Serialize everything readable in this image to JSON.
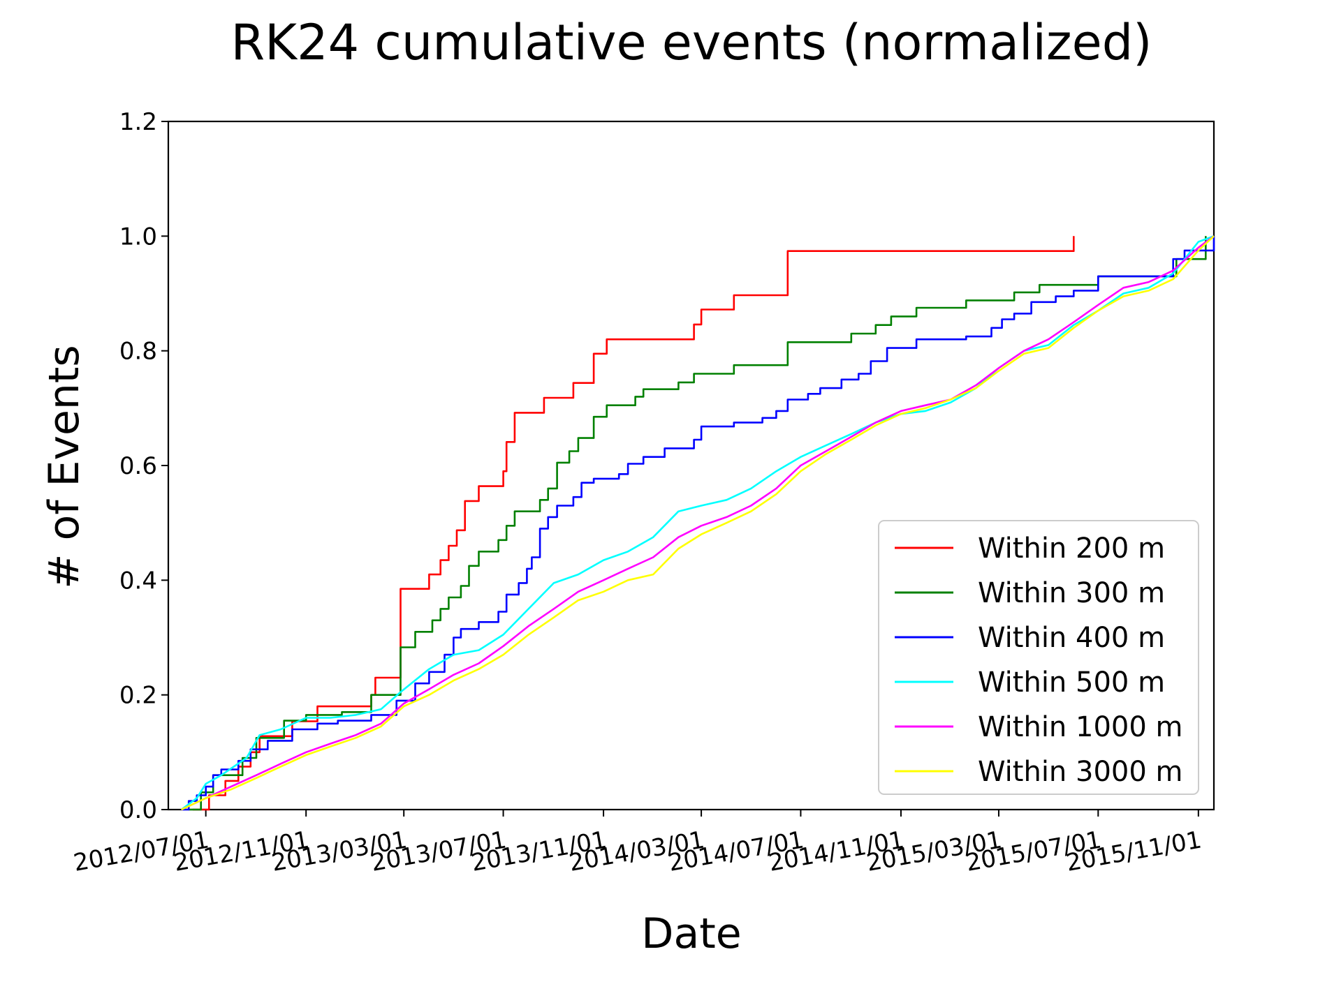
{
  "chart_data": {
    "type": "line",
    "title": "RK24 cumulative events (normalized)",
    "xlabel": "Date",
    "ylabel": "# of Events",
    "ylim": [
      0,
      1.2
    ],
    "y_ticks": [
      "0.0",
      "0.2",
      "0.4",
      "0.6",
      "0.8",
      "1.0",
      "1.2"
    ],
    "x_ticks": [
      "2012/07/01",
      "2012/11/01",
      "2013/03/01",
      "2013/07/01",
      "2013/11/01",
      "2014/03/01",
      "2014/07/01",
      "2014/11/01",
      "2015/03/01",
      "2015/07/01",
      "2015/11/01"
    ],
    "xlim": [
      "2012/05/16",
      "2015/11/20"
    ],
    "grid": false,
    "legend_position": "lower-right",
    "series": [
      {
        "name": "Within 200 m",
        "color": "#ff0000",
        "step": true,
        "points": [
          [
            "2012/06/15",
            0.0
          ],
          [
            "2012/07/01",
            0.0
          ],
          [
            "2012/07/05",
            0.025
          ],
          [
            "2012/07/25",
            0.05
          ],
          [
            "2012/08/10",
            0.075
          ],
          [
            "2012/08/25",
            0.1
          ],
          [
            "2012/09/05",
            0.128
          ],
          [
            "2012/10/15",
            0.154
          ],
          [
            "2012/11/15",
            0.18
          ],
          [
            "2013/01/20",
            0.2
          ],
          [
            "2013/01/25",
            0.23
          ],
          [
            "2013/02/25",
            0.385
          ],
          [
            "2013/04/01",
            0.41
          ],
          [
            "2013/04/15",
            0.435
          ],
          [
            "2013/04/25",
            0.46
          ],
          [
            "2013/05/05",
            0.487
          ],
          [
            "2013/05/15",
            0.538
          ],
          [
            "2013/06/01",
            0.564
          ],
          [
            "2013/07/01",
            0.59
          ],
          [
            "2013/07/05",
            0.641
          ],
          [
            "2013/07/15",
            0.692
          ],
          [
            "2013/08/20",
            0.718
          ],
          [
            "2013/09/25",
            0.744
          ],
          [
            "2013/10/20",
            0.795
          ],
          [
            "2013/11/05",
            0.82
          ],
          [
            "2014/02/20",
            0.846
          ],
          [
            "2014/03/01",
            0.872
          ],
          [
            "2014/04/10",
            0.897
          ],
          [
            "2014/06/15",
            0.974
          ],
          [
            "2015/06/01",
            1.0
          ]
        ]
      },
      {
        "name": "Within 300 m",
        "color": "#008000",
        "step": true,
        "points": [
          [
            "2012/06/10",
            0.0
          ],
          [
            "2012/06/25",
            0.03
          ],
          [
            "2012/07/10",
            0.06
          ],
          [
            "2012/08/15",
            0.09
          ],
          [
            "2012/09/01",
            0.125
          ],
          [
            "2012/10/05",
            0.155
          ],
          [
            "2012/11/01",
            0.165
          ],
          [
            "2012/12/15",
            0.17
          ],
          [
            "2013/01/20",
            0.2
          ],
          [
            "2013/02/25",
            0.283
          ],
          [
            "2013/03/15",
            0.31
          ],
          [
            "2013/04/05",
            0.33
          ],
          [
            "2013/04/15",
            0.35
          ],
          [
            "2013/04/25",
            0.37
          ],
          [
            "2013/05/10",
            0.39
          ],
          [
            "2013/05/20",
            0.425
          ],
          [
            "2013/06/01",
            0.45
          ],
          [
            "2013/06/25",
            0.47
          ],
          [
            "2013/07/05",
            0.495
          ],
          [
            "2013/07/15",
            0.52
          ],
          [
            "2013/08/15",
            0.54
          ],
          [
            "2013/08/25",
            0.56
          ],
          [
            "2013/09/05",
            0.605
          ],
          [
            "2013/09/20",
            0.625
          ],
          [
            "2013/10/01",
            0.648
          ],
          [
            "2013/10/20",
            0.685
          ],
          [
            "2013/11/05",
            0.705
          ],
          [
            "2013/12/10",
            0.72
          ],
          [
            "2013/12/20",
            0.733
          ],
          [
            "2014/02/01",
            0.745
          ],
          [
            "2014/02/20",
            0.76
          ],
          [
            "2014/04/10",
            0.775
          ],
          [
            "2014/06/15",
            0.815
          ],
          [
            "2014/09/01",
            0.83
          ],
          [
            "2014/10/01",
            0.845
          ],
          [
            "2014/10/20",
            0.86
          ],
          [
            "2014/11/20",
            0.875
          ],
          [
            "2015/01/20",
            0.888
          ],
          [
            "2015/03/20",
            0.902
          ],
          [
            "2015/04/20",
            0.915
          ],
          [
            "2015/07/01",
            0.93
          ],
          [
            "2015/10/05",
            0.96
          ],
          [
            "2015/11/10",
            1.0
          ]
        ]
      },
      {
        "name": "Within 400 m",
        "color": "#0000ff",
        "step": true,
        "points": [
          [
            "2012/06/01",
            0.0
          ],
          [
            "2012/06/10",
            0.015
          ],
          [
            "2012/06/20",
            0.025
          ],
          [
            "2012/07/01",
            0.04
          ],
          [
            "2012/07/10",
            0.06
          ],
          [
            "2012/07/20",
            0.07
          ],
          [
            "2012/08/10",
            0.085
          ],
          [
            "2012/08/25",
            0.105
          ],
          [
            "2012/09/15",
            0.12
          ],
          [
            "2012/10/15",
            0.14
          ],
          [
            "2012/11/15",
            0.15
          ],
          [
            "2012/12/10",
            0.155
          ],
          [
            "2013/01/20",
            0.165
          ],
          [
            "2013/02/20",
            0.19
          ],
          [
            "2013/03/15",
            0.22
          ],
          [
            "2013/04/01",
            0.24
          ],
          [
            "2013/04/20",
            0.27
          ],
          [
            "2013/05/01",
            0.3
          ],
          [
            "2013/05/10",
            0.315
          ],
          [
            "2013/06/01",
            0.327
          ],
          [
            "2013/06/25",
            0.345
          ],
          [
            "2013/07/05",
            0.375
          ],
          [
            "2013/07/20",
            0.395
          ],
          [
            "2013/07/30",
            0.42
          ],
          [
            "2013/08/05",
            0.44
          ],
          [
            "2013/08/15",
            0.49
          ],
          [
            "2013/08/25",
            0.51
          ],
          [
            "2013/09/05",
            0.53
          ],
          [
            "2013/09/25",
            0.545
          ],
          [
            "2013/10/05",
            0.57
          ],
          [
            "2013/10/20",
            0.577
          ],
          [
            "2013/11/20",
            0.585
          ],
          [
            "2013/12/01",
            0.603
          ],
          [
            "2013/12/20",
            0.615
          ],
          [
            "2014/01/15",
            0.63
          ],
          [
            "2014/02/20",
            0.645
          ],
          [
            "2014/03/01",
            0.668
          ],
          [
            "2014/04/10",
            0.675
          ],
          [
            "2014/05/15",
            0.683
          ],
          [
            "2014/06/01",
            0.695
          ],
          [
            "2014/06/15",
            0.715
          ],
          [
            "2014/07/10",
            0.725
          ],
          [
            "2014/07/25",
            0.735
          ],
          [
            "2014/08/20",
            0.75
          ],
          [
            "2014/09/10",
            0.76
          ],
          [
            "2014/09/25",
            0.782
          ],
          [
            "2014/10/15",
            0.805
          ],
          [
            "2014/11/20",
            0.82
          ],
          [
            "2015/01/20",
            0.825
          ],
          [
            "2015/02/20",
            0.84
          ],
          [
            "2015/03/05",
            0.855
          ],
          [
            "2015/03/20",
            0.865
          ],
          [
            "2015/04/10",
            0.885
          ],
          [
            "2015/05/10",
            0.895
          ],
          [
            "2015/06/01",
            0.905
          ],
          [
            "2015/07/01",
            0.93
          ],
          [
            "2015/10/01",
            0.96
          ],
          [
            "2015/10/15",
            0.975
          ],
          [
            "2015/11/20",
            1.0
          ]
        ]
      },
      {
        "name": "Within 500 m",
        "color": "#00ffff",
        "step": false,
        "points": [
          [
            "2012/06/01",
            0.0
          ],
          [
            "2012/06/20",
            0.02
          ],
          [
            "2012/07/01",
            0.045
          ],
          [
            "2012/07/20",
            0.06
          ],
          [
            "2012/08/20",
            0.09
          ],
          [
            "2012/09/05",
            0.13
          ],
          [
            "2012/10/01",
            0.14
          ],
          [
            "2012/11/01",
            0.16
          ],
          [
            "2012/12/01",
            0.16
          ],
          [
            "2013/01/01",
            0.165
          ],
          [
            "2013/02/01",
            0.175
          ],
          [
            "2013/02/25",
            0.205
          ],
          [
            "2013/04/01",
            0.245
          ],
          [
            "2013/05/01",
            0.27
          ],
          [
            "2013/06/01",
            0.278
          ],
          [
            "2013/07/01",
            0.305
          ],
          [
            "2013/08/01",
            0.35
          ],
          [
            "2013/09/01",
            0.395
          ],
          [
            "2013/10/01",
            0.41
          ],
          [
            "2013/11/01",
            0.435
          ],
          [
            "2013/12/01",
            0.45
          ],
          [
            "2014/01/01",
            0.475
          ],
          [
            "2014/02/01",
            0.52
          ],
          [
            "2014/03/01",
            0.53
          ],
          [
            "2014/04/01",
            0.54
          ],
          [
            "2014/05/01",
            0.56
          ],
          [
            "2014/06/01",
            0.59
          ],
          [
            "2014/07/01",
            0.615
          ],
          [
            "2014/08/01",
            0.635
          ],
          [
            "2014/09/01",
            0.655
          ],
          [
            "2014/10/01",
            0.675
          ],
          [
            "2014/11/01",
            0.69
          ],
          [
            "2014/12/01",
            0.695
          ],
          [
            "2015/01/01",
            0.71
          ],
          [
            "2015/02/01",
            0.735
          ],
          [
            "2015/03/01",
            0.77
          ],
          [
            "2015/04/01",
            0.8
          ],
          [
            "2015/05/01",
            0.81
          ],
          [
            "2015/06/01",
            0.845
          ],
          [
            "2015/07/01",
            0.87
          ],
          [
            "2015/08/01",
            0.9
          ],
          [
            "2015/09/01",
            0.91
          ],
          [
            "2015/10/01",
            0.935
          ],
          [
            "2015/11/01",
            0.99
          ],
          [
            "2015/11/20",
            1.0
          ]
        ]
      },
      {
        "name": "Within 1000 m",
        "color": "#ff00ff",
        "step": false,
        "points": [
          [
            "2012/06/01",
            0.0
          ],
          [
            "2012/07/01",
            0.02
          ],
          [
            "2012/08/01",
            0.04
          ],
          [
            "2012/09/01",
            0.06
          ],
          [
            "2012/10/01",
            0.08
          ],
          [
            "2012/11/01",
            0.1
          ],
          [
            "2012/12/01",
            0.115
          ],
          [
            "2013/01/01",
            0.13
          ],
          [
            "2013/02/01",
            0.15
          ],
          [
            "2013/03/01",
            0.185
          ],
          [
            "2013/04/01",
            0.21
          ],
          [
            "2013/05/01",
            0.235
          ],
          [
            "2013/06/01",
            0.255
          ],
          [
            "2013/07/01",
            0.285
          ],
          [
            "2013/08/01",
            0.32
          ],
          [
            "2013/09/01",
            0.35
          ],
          [
            "2013/10/01",
            0.38
          ],
          [
            "2013/11/01",
            0.4
          ],
          [
            "2013/12/01",
            0.42
          ],
          [
            "2014/01/01",
            0.44
          ],
          [
            "2014/02/01",
            0.475
          ],
          [
            "2014/03/01",
            0.495
          ],
          [
            "2014/04/01",
            0.51
          ],
          [
            "2014/05/01",
            0.53
          ],
          [
            "2014/06/01",
            0.56
          ],
          [
            "2014/07/01",
            0.6
          ],
          [
            "2014/08/01",
            0.625
          ],
          [
            "2014/09/01",
            0.65
          ],
          [
            "2014/10/01",
            0.675
          ],
          [
            "2014/11/01",
            0.695
          ],
          [
            "2014/12/01",
            0.705
          ],
          [
            "2015/01/01",
            0.715
          ],
          [
            "2015/02/01",
            0.74
          ],
          [
            "2015/03/01",
            0.77
          ],
          [
            "2015/04/01",
            0.8
          ],
          [
            "2015/05/01",
            0.82
          ],
          [
            "2015/06/01",
            0.85
          ],
          [
            "2015/07/01",
            0.88
          ],
          [
            "2015/08/01",
            0.91
          ],
          [
            "2015/09/01",
            0.92
          ],
          [
            "2015/10/01",
            0.94
          ],
          [
            "2015/11/01",
            0.98
          ],
          [
            "2015/11/20",
            1.0
          ]
        ]
      },
      {
        "name": "Within 3000 m",
        "color": "#ffff00",
        "step": false,
        "points": [
          [
            "2012/06/01",
            0.0
          ],
          [
            "2012/07/01",
            0.02
          ],
          [
            "2012/08/01",
            0.035
          ],
          [
            "2012/09/01",
            0.055
          ],
          [
            "2012/10/01",
            0.075
          ],
          [
            "2012/11/01",
            0.095
          ],
          [
            "2012/12/01",
            0.11
          ],
          [
            "2013/01/01",
            0.125
          ],
          [
            "2013/02/01",
            0.145
          ],
          [
            "2013/03/01",
            0.18
          ],
          [
            "2013/04/01",
            0.2
          ],
          [
            "2013/05/01",
            0.225
          ],
          [
            "2013/06/01",
            0.245
          ],
          [
            "2013/07/01",
            0.27
          ],
          [
            "2013/08/01",
            0.305
          ],
          [
            "2013/09/01",
            0.335
          ],
          [
            "2013/10/01",
            0.365
          ],
          [
            "2013/11/01",
            0.38
          ],
          [
            "2013/12/01",
            0.4
          ],
          [
            "2014/01/01",
            0.41
          ],
          [
            "2014/02/01",
            0.455
          ],
          [
            "2014/03/01",
            0.48
          ],
          [
            "2014/04/01",
            0.5
          ],
          [
            "2014/05/01",
            0.52
          ],
          [
            "2014/06/01",
            0.55
          ],
          [
            "2014/07/01",
            0.59
          ],
          [
            "2014/08/01",
            0.62
          ],
          [
            "2014/09/01",
            0.645
          ],
          [
            "2014/10/01",
            0.67
          ],
          [
            "2014/11/01",
            0.69
          ],
          [
            "2014/12/01",
            0.7
          ],
          [
            "2015/01/01",
            0.715
          ],
          [
            "2015/02/01",
            0.735
          ],
          [
            "2015/03/01",
            0.765
          ],
          [
            "2015/04/01",
            0.795
          ],
          [
            "2015/05/01",
            0.805
          ],
          [
            "2015/06/01",
            0.84
          ],
          [
            "2015/07/01",
            0.87
          ],
          [
            "2015/08/01",
            0.895
          ],
          [
            "2015/09/01",
            0.905
          ],
          [
            "2015/10/01",
            0.925
          ],
          [
            "2015/11/01",
            0.975
          ],
          [
            "2015/11/20",
            1.0
          ]
        ]
      }
    ]
  }
}
